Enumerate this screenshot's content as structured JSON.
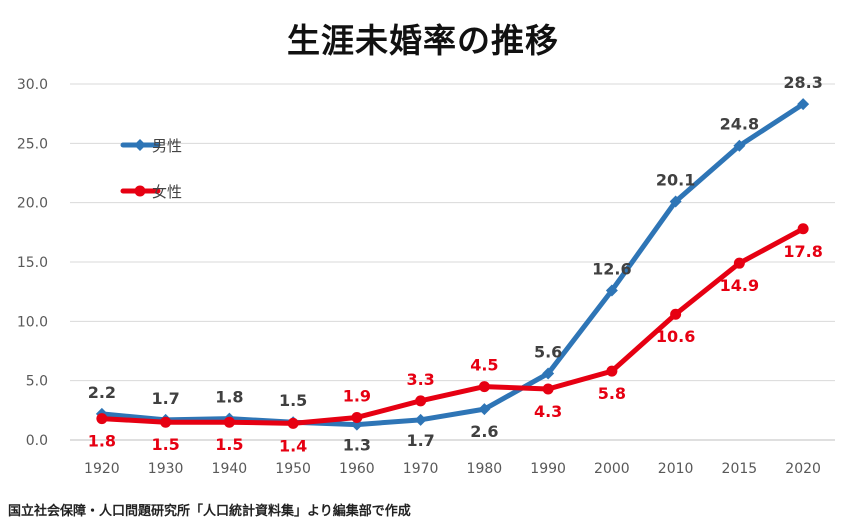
{
  "chart_data": {
    "type": "line",
    "title": "生涯未婚率の推移",
    "categories": [
      "1920",
      "1930",
      "1940",
      "1950",
      "1960",
      "1970",
      "1980",
      "1990",
      "2000",
      "2010",
      "2015",
      "2020"
    ],
    "series": [
      {
        "name": "男性",
        "color": "#2E75B6",
        "values": [
          2.2,
          1.7,
          1.8,
          1.5,
          1.3,
          1.7,
          2.6,
          5.6,
          12.6,
          20.1,
          24.8,
          28.3
        ],
        "labels": [
          "2.2",
          "1.7",
          "1.8",
          "1.5",
          "1.3",
          "1.7",
          "2.6",
          "5.6",
          "12.6",
          "20.1",
          "24.8",
          "28.3"
        ]
      },
      {
        "name": "女性",
        "color": "#E60012",
        "values": [
          1.8,
          1.5,
          1.5,
          1.4,
          1.9,
          3.3,
          4.5,
          4.3,
          5.8,
          10.6,
          14.9,
          17.8
        ],
        "labels": [
          "1.8",
          "1.5",
          "1.5",
          "1.4",
          "1.9",
          "3.3",
          "4.5",
          "4.3",
          "5.8",
          "10.6",
          "14.9",
          "17.8"
        ]
      }
    ],
    "ylim": [
      0,
      30
    ],
    "yticks": [
      "0.0",
      "5.0",
      "10.0",
      "15.0",
      "20.0",
      "25.0",
      "30.0"
    ],
    "grid": true,
    "legend_position": "top-left",
    "label_color_series1": "#404040",
    "label_color_series2": "#E60012"
  },
  "source": "国立社会保障・人口問題研究所「人口統計資料集」より編集部で作成"
}
